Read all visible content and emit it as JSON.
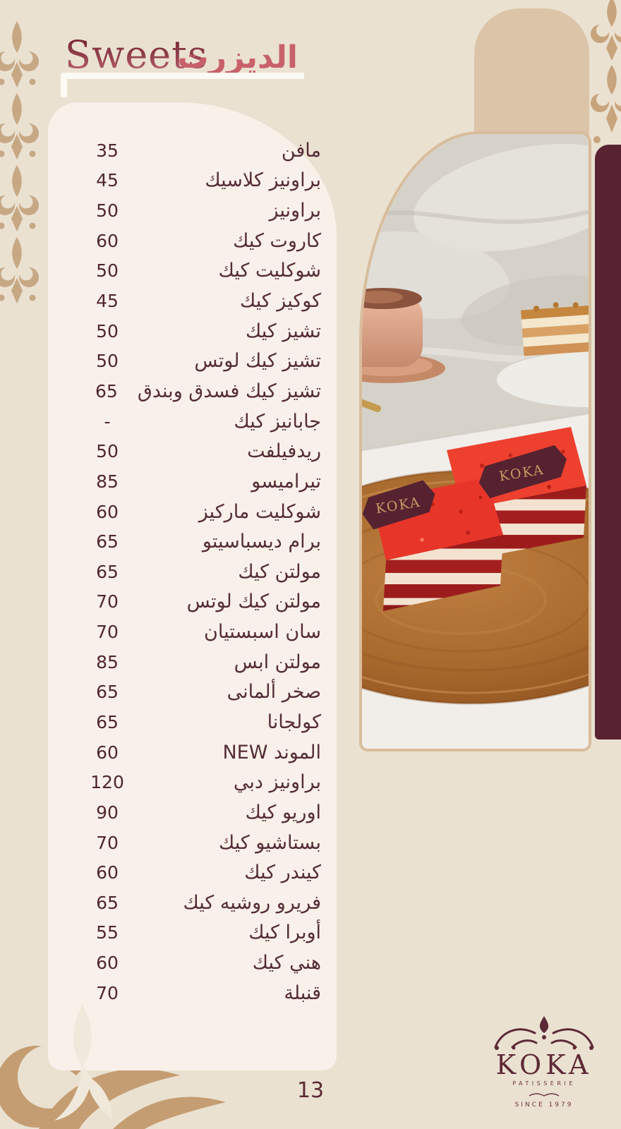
{
  "page": {
    "number": "13",
    "background_color": "#eae1d1"
  },
  "header": {
    "title_en": "Sweets",
    "title_ar": "الديزرت",
    "title_en_gradient": [
      "#6e1e2b",
      "#c56b7a"
    ],
    "title_ar_color": "#c8616a",
    "underline_color": "#fcfaf4"
  },
  "menu": {
    "items": [
      {
        "name": "مافن",
        "price": "35"
      },
      {
        "name": "براونيز كلاسيك",
        "price": "45"
      },
      {
        "name": "براونيز",
        "price": "50"
      },
      {
        "name": "كاروت كيك",
        "price": "60"
      },
      {
        "name": "شوكليت كيك",
        "price": "50"
      },
      {
        "name": "كوكيز كيك",
        "price": "45"
      },
      {
        "name": "تشيز كيك",
        "price": "50"
      },
      {
        "name": "تشيز كيك لوتس",
        "price": "50"
      },
      {
        "name": "تشيز كيك فسدق وبندق",
        "price": "65"
      },
      {
        "name": "جابانيز كيك",
        "price": "-"
      },
      {
        "name": "ريدفيلفت",
        "price": "50"
      },
      {
        "name": "تيراميسو",
        "price": "85"
      },
      {
        "name": "شوكليت ماركيز",
        "price": "60"
      },
      {
        "name": "برام ديسباسيتو",
        "price": "65"
      },
      {
        "name": "مولتن كيك",
        "price": "65"
      },
      {
        "name": "مولتن كيك لوتس",
        "price": "70"
      },
      {
        "name": "سان اسبستيان",
        "price": "70"
      },
      {
        "name": "مولتن ابس",
        "price": "85"
      },
      {
        "name": "صخر ألمانى",
        "price": "65"
      },
      {
        "name": "كولجانا",
        "price": "65"
      },
      {
        "name": "الموند NEW",
        "price": "60"
      },
      {
        "name": "براونيز دبي",
        "price": "120"
      },
      {
        "name": "اوريو كيك",
        "price": "90"
      },
      {
        "name": "بستاشيو كيك",
        "price": "70"
      },
      {
        "name": "كيندر كيك",
        "price": "60"
      },
      {
        "name": "فريرو روشيه كيك",
        "price": "65"
      },
      {
        "name": "أوبرا كيك",
        "price": "55"
      },
      {
        "name": "هني كيك",
        "price": "60"
      },
      {
        "name": "قنبلة",
        "price": "70"
      }
    ],
    "text_color": "#552c37",
    "card_color": "#f9f1e9"
  },
  "photo": {
    "flag_text_left": "KOKA",
    "flag_text_right": "KOKA",
    "panel_color": "#5a2332",
    "arch_color": "#dcc4a8",
    "border_color": "#d8bd9c"
  },
  "logo": {
    "brand": "KOKA",
    "tagline": "PATISSERIE",
    "since": "SINCE 1979",
    "color": "#5d2936"
  }
}
